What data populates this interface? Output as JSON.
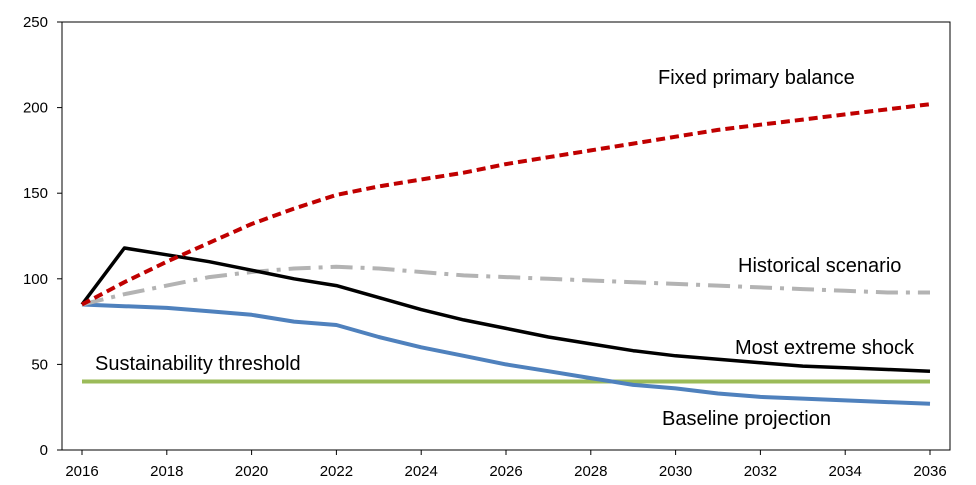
{
  "chart_data": {
    "type": "line",
    "title": "",
    "xlabel": "",
    "ylabel": "",
    "ylim": [
      0,
      250
    ],
    "yticks": [
      0,
      50,
      100,
      150,
      200,
      250
    ],
    "xlim": [
      2016,
      2036
    ],
    "xticks": [
      2016,
      2018,
      2020,
      2022,
      2024,
      2026,
      2028,
      2030,
      2032,
      2034,
      2036
    ],
    "grid": false,
    "legend": "none",
    "x": [
      2016,
      2017,
      2018,
      2019,
      2020,
      2021,
      2022,
      2023,
      2024,
      2025,
      2026,
      2027,
      2028,
      2029,
      2030,
      2031,
      2032,
      2033,
      2034,
      2035,
      2036
    ],
    "series": [
      {
        "name": "Fixed primary balance",
        "color": "#c00000",
        "style": "dashed",
        "values": [
          85,
          98,
          110,
          121,
          132,
          141,
          149,
          154,
          158,
          162,
          167,
          171,
          175,
          179,
          183,
          187,
          190,
          193,
          196,
          199,
          202
        ]
      },
      {
        "name": "Historical scenario",
        "color": "#b3b3b3",
        "style": "dashdot",
        "values": [
          85,
          91,
          96,
          101,
          104,
          106,
          107,
          106,
          104,
          102,
          101,
          100,
          99,
          98,
          97,
          96,
          95,
          94,
          93,
          92,
          92
        ]
      },
      {
        "name": "Most extreme shock",
        "color": "#000000",
        "style": "solid",
        "values": [
          85,
          118,
          114,
          110,
          105,
          100,
          96,
          89,
          82,
          76,
          71,
          66,
          62,
          58,
          55,
          53,
          51,
          49,
          48,
          47,
          46
        ]
      },
      {
        "name": "Baseline projection",
        "color": "#4f81bd",
        "style": "solid",
        "values": [
          85,
          84,
          83,
          81,
          79,
          75,
          73,
          66,
          60,
          55,
          50,
          46,
          42,
          38,
          36,
          33,
          31,
          30,
          29,
          28,
          27
        ]
      },
      {
        "name": "Sustainability threshold",
        "color": "#9bbb59",
        "style": "solid",
        "values": [
          40,
          40,
          40,
          40,
          40,
          40,
          40,
          40,
          40,
          40,
          40,
          40,
          40,
          40,
          40,
          40,
          40,
          40,
          40,
          40,
          40
        ]
      }
    ]
  }
}
